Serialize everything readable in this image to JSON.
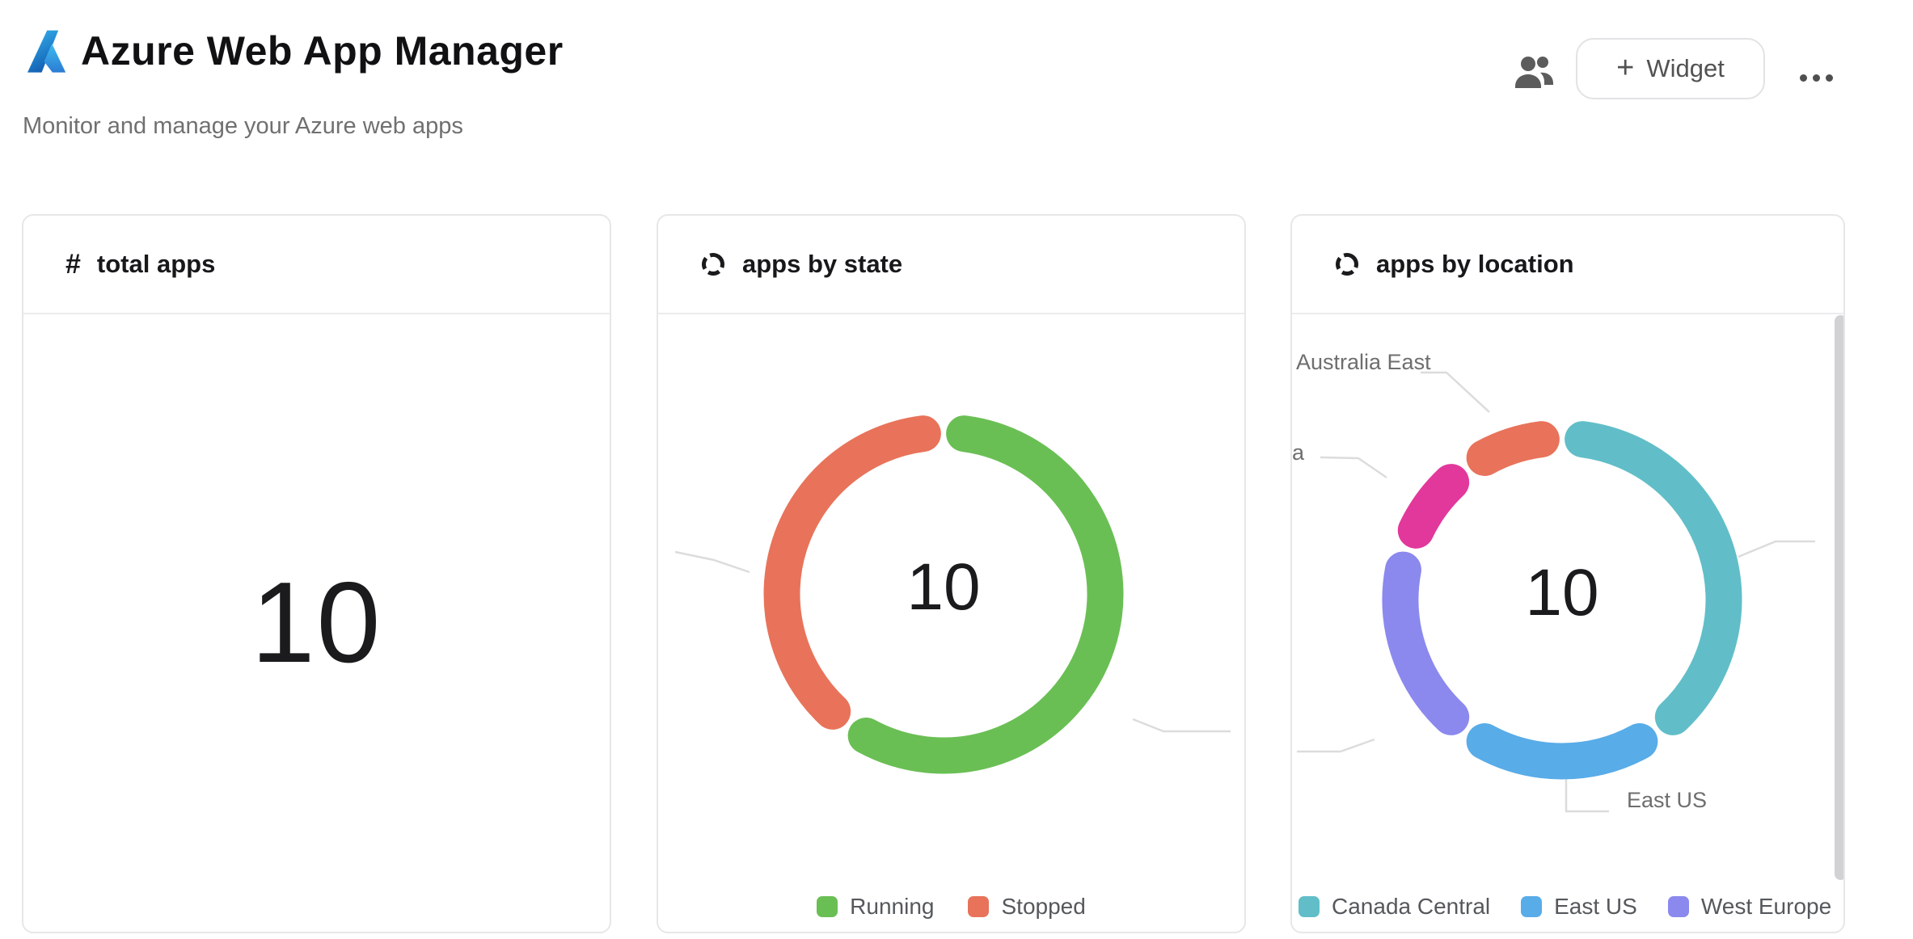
{
  "header": {
    "app_title": "Azure Web App Manager",
    "subtitle": "Monitor and manage your Azure web apps",
    "widget_button": {
      "plus": "+",
      "label": "Widget"
    }
  },
  "cards": {
    "total_apps": {
      "icon": "#",
      "title": "total apps",
      "value": "10"
    },
    "apps_by_state": {
      "title": "apps by state"
    },
    "apps_by_location": {
      "title": "apps by location"
    }
  },
  "chart_data": [
    {
      "type": "pie",
      "title": "apps by state",
      "center_label": "10",
      "total": 10,
      "legend_position": "bottom-center",
      "segments": [
        {
          "label": "Running",
          "value": 6,
          "color": "#6abf54"
        },
        {
          "label": "Stopped",
          "value": 4,
          "color": "#e8735a"
        }
      ],
      "legend_items": [
        {
          "label": "Running",
          "color": "#6abf54"
        },
        {
          "label": "Stopped",
          "color": "#e8735a"
        }
      ]
    },
    {
      "type": "pie",
      "title": "apps by location",
      "center_label": "10",
      "total": 10,
      "legend_position": "bottom-left",
      "segments": [
        {
          "label": "Canada Central",
          "value": 4,
          "color": "#61bec8"
        },
        {
          "label": "East US",
          "value": 2,
          "color": "#58ace8"
        },
        {
          "label": "West Europe",
          "value": 2,
          "color": "#8b89ee"
        },
        {
          "label": "a",
          "value": 1,
          "color": "#e2389b",
          "label_clipped": true
        },
        {
          "label": "Australia East",
          "value": 1,
          "color": "#e8735a"
        }
      ],
      "legend_items": [
        {
          "label": "Canada Central",
          "color": "#61bec8"
        },
        {
          "label": "East US",
          "color": "#58ace8"
        },
        {
          "label": "West Europe",
          "color": "#8b89ee"
        }
      ],
      "callouts": {
        "australia_east": "Australia East",
        "clipped": "a",
        "east_us": "East US"
      }
    }
  ]
}
